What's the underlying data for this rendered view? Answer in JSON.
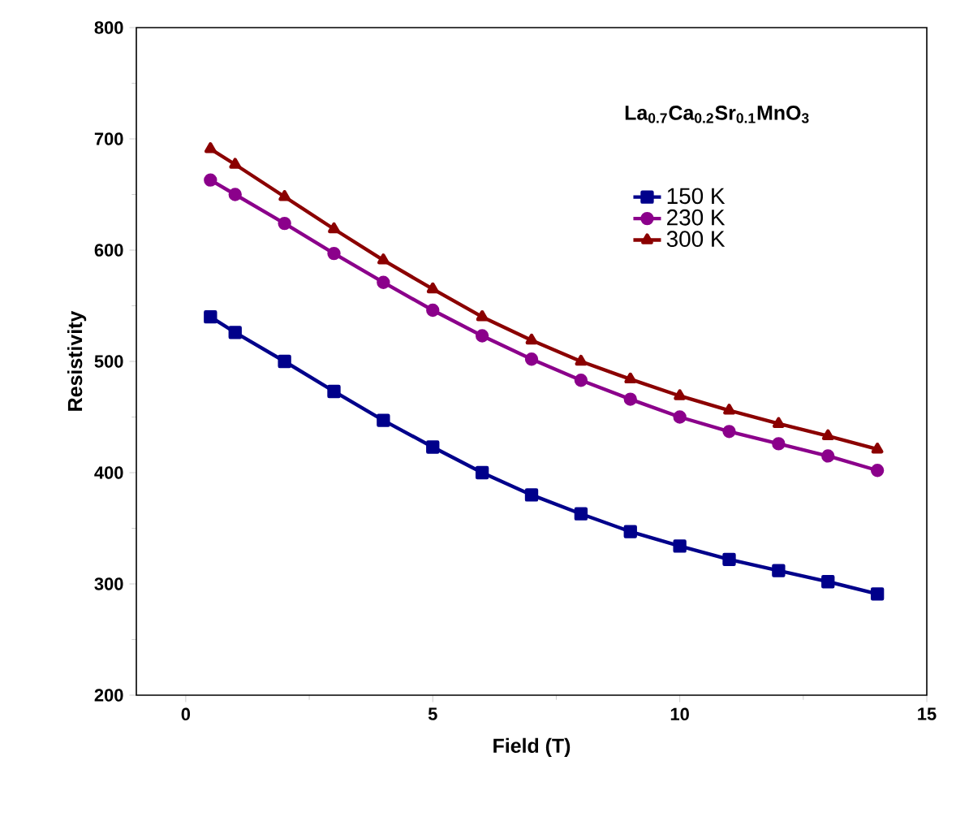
{
  "chart_data": {
    "type": "line",
    "xlabel": "Field (T)",
    "ylabel": "Resistivity",
    "annotations": [
      "La$_{0.7}$Ca$_{0.2}$Sr$_{0.1}$MnO$_{3}$"
    ],
    "x": [
      0.5,
      1,
      2,
      3,
      4,
      5,
      6,
      7,
      8,
      9,
      10,
      11,
      12,
      13,
      14
    ],
    "series": [
      {
        "name": "150 K",
        "color": "#00008b",
        "marker": "square",
        "values": [
          540,
          526,
          500,
          473,
          447,
          423,
          400,
          380,
          363,
          347,
          334,
          322,
          312,
          302,
          291
        ]
      },
      {
        "name": "230 K",
        "color": "#8b008b",
        "marker": "circle",
        "values": [
          663,
          650,
          624,
          597,
          571,
          546,
          523,
          502,
          483,
          466,
          450,
          437,
          426,
          415,
          402
        ]
      },
      {
        "name": "300 K",
        "color": "#8b0000",
        "marker": "triangle",
        "values": [
          691,
          677,
          648,
          619,
          591,
          565,
          540,
          519,
          500,
          484,
          469,
          456,
          444,
          433,
          421
        ]
      }
    ],
    "xlim": [
      -1,
      15
    ],
    "xticks": [
      0,
      5,
      10,
      15
    ],
    "ylim": [
      200,
      800
    ],
    "yticks": [
      200,
      300,
      400,
      500,
      600,
      700,
      800
    ],
    "legend": "top right",
    "grid": false,
    "line_style": "solid"
  }
}
